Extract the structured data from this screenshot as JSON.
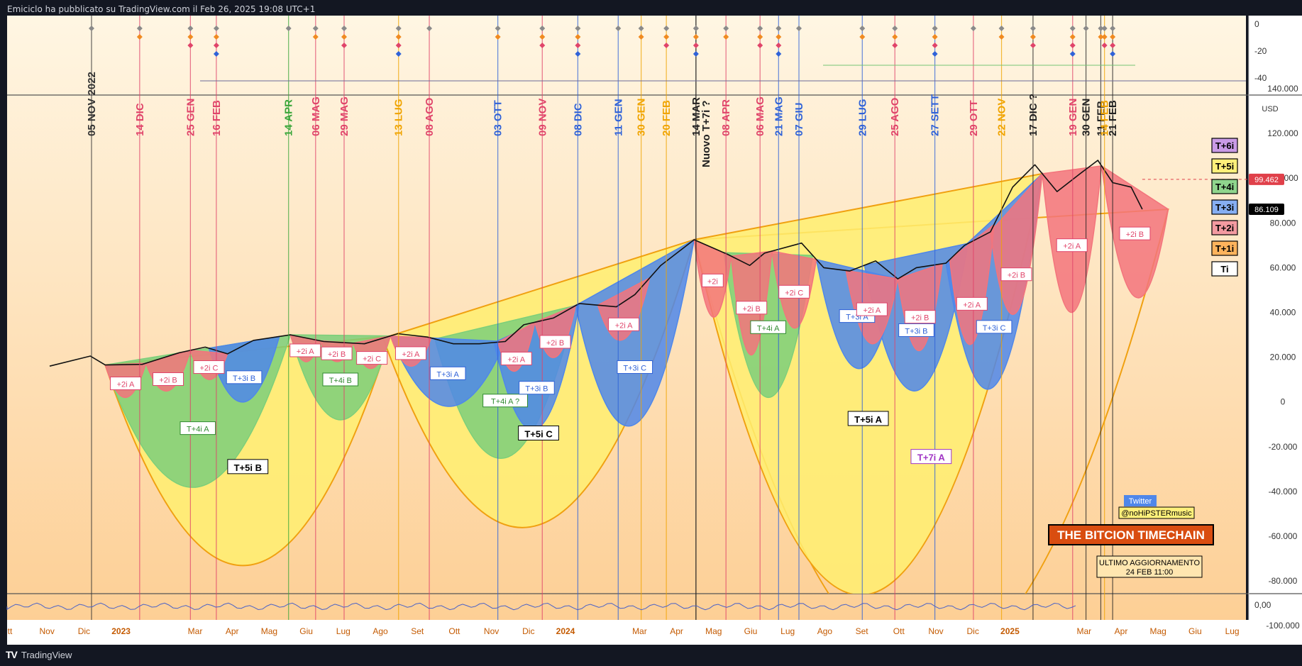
{
  "header": {
    "published_by": "Emiciclo ha pubblicato su TradingView.com il Feb 26, 2025 19:08 UTC+1"
  },
  "footer": {
    "brand": "TradingView"
  },
  "colors": {
    "background_top": "#fff6e3",
    "background_bottom": "#fdcf95",
    "cycle_T7i": "#ffb600",
    "cycle_T5i": "#ffee70",
    "cycle_T4i": "#7ccf7a",
    "cycle_T3i": "#4f87ea",
    "cycle_T2i": "#f3747c",
    "cycle_T1i": "#ffb35c",
    "price": "#111111"
  },
  "price_axis": {
    "currency": "USD",
    "ticks": [
      "140.000",
      "120.000",
      "100.000",
      "80.000",
      "60.000",
      "40.000",
      "20.000",
      "0",
      "-20.000",
      "-40.000",
      "-60.000",
      "-80.000",
      "-100.000"
    ],
    "last_price": "86.109",
    "ref_price": "99.462"
  },
  "top_panel_axis": {
    "ticks": [
      "0",
      "-20",
      "-40"
    ]
  },
  "bottom_panel_axis": {
    "ticks": [
      "0,00"
    ]
  },
  "time_axis": {
    "labels": [
      {
        "t": "tt",
        "m": 0
      },
      {
        "t": "Nov",
        "m": 1
      },
      {
        "t": "Dic",
        "m": 2
      },
      {
        "t": "2023",
        "m": 3,
        "bold": true
      },
      {
        "t": "Mar",
        "m": 5
      },
      {
        "t": "Apr",
        "m": 6
      },
      {
        "t": "Mag",
        "m": 7
      },
      {
        "t": "Giu",
        "m": 8
      },
      {
        "t": "Lug",
        "m": 9
      },
      {
        "t": "Ago",
        "m": 10
      },
      {
        "t": "Set",
        "m": 11
      },
      {
        "t": "Ott",
        "m": 12
      },
      {
        "t": "Nov",
        "m": 13
      },
      {
        "t": "Dic",
        "m": 14
      },
      {
        "t": "2024",
        "m": 15,
        "bold": true
      },
      {
        "t": "Mar",
        "m": 17
      },
      {
        "t": "Apr",
        "m": 18
      },
      {
        "t": "Mag",
        "m": 19
      },
      {
        "t": "Giu",
        "m": 20
      },
      {
        "t": "Lug",
        "m": 21
      },
      {
        "t": "Ago",
        "m": 22
      },
      {
        "t": "Set",
        "m": 23
      },
      {
        "t": "Ott",
        "m": 24
      },
      {
        "t": "Nov",
        "m": 25
      },
      {
        "t": "Dic",
        "m": 26
      },
      {
        "t": "2025",
        "m": 27,
        "bold": true
      },
      {
        "t": "Mar",
        "m": 29
      },
      {
        "t": "Apr",
        "m": 30
      },
      {
        "t": "Mag",
        "m": 31
      },
      {
        "t": "Giu",
        "m": 32
      },
      {
        "t": "Lug",
        "m": 33
      }
    ]
  },
  "chart_data": {
    "type": "line",
    "title": "THE BITCION TIMECHAIN",
    "ylabel": "USD",
    "ylim": [
      -120000,
      150000
    ],
    "x_months": "month index, 0 = Oct 2022 ... 33 = Jul 2025",
    "price_series": [
      {
        "x": 0,
        "y": 16000
      },
      {
        "x": 1.1,
        "y": 20500
      },
      {
        "x": 1.5,
        "y": 16500
      },
      {
        "x": 2.5,
        "y": 16800
      },
      {
        "x": 3.5,
        "y": 22000
      },
      {
        "x": 4.2,
        "y": 24500
      },
      {
        "x": 4.8,
        "y": 21500
      },
      {
        "x": 5.5,
        "y": 27500
      },
      {
        "x": 6.5,
        "y": 30000
      },
      {
        "x": 7.4,
        "y": 27000
      },
      {
        "x": 8.5,
        "y": 26000
      },
      {
        "x": 9.4,
        "y": 30500
      },
      {
        "x": 10.2,
        "y": 29000
      },
      {
        "x": 10.9,
        "y": 26000
      },
      {
        "x": 11.6,
        "y": 26000
      },
      {
        "x": 12.3,
        "y": 27000
      },
      {
        "x": 12.8,
        "y": 34500
      },
      {
        "x": 13.6,
        "y": 37500
      },
      {
        "x": 14.3,
        "y": 44000
      },
      {
        "x": 15.3,
        "y": 42500
      },
      {
        "x": 15.8,
        "y": 48000
      },
      {
        "x": 16.5,
        "y": 61000
      },
      {
        "x": 17.4,
        "y": 72500
      },
      {
        "x": 18.3,
        "y": 66000
      },
      {
        "x": 18.9,
        "y": 61000
      },
      {
        "x": 19.3,
        "y": 66500
      },
      {
        "x": 20.3,
        "y": 71000
      },
      {
        "x": 20.9,
        "y": 60000
      },
      {
        "x": 21.6,
        "y": 58500
      },
      {
        "x": 22.3,
        "y": 63000
      },
      {
        "x": 22.9,
        "y": 55000
      },
      {
        "x": 23.4,
        "y": 60000
      },
      {
        "x": 24.2,
        "y": 62000
      },
      {
        "x": 24.7,
        "y": 70000
      },
      {
        "x": 25.4,
        "y": 76000
      },
      {
        "x": 26.0,
        "y": 96000
      },
      {
        "x": 26.6,
        "y": 106000
      },
      {
        "x": 27.2,
        "y": 94000
      },
      {
        "x": 27.9,
        "y": 103000
      },
      {
        "x": 28.3,
        "y": 108000
      },
      {
        "x": 28.7,
        "y": 98000
      },
      {
        "x": 29.2,
        "y": 96000
      },
      {
        "x": 29.5,
        "y": 86109
      }
    ],
    "cycles": [
      {
        "label": "T+7i A",
        "start": 17.4,
        "end": 30.2,
        "low": -120000
      },
      {
        "label": "T+5i B",
        "start": 1.5,
        "end": 9.2,
        "low": -73000
      },
      {
        "label": "T+5i C",
        "start": 9.0,
        "end": 17.4,
        "low": -55000
      },
      {
        "label": "T+5i A",
        "start": 17.4,
        "end": 26.8,
        "low": -86000
      },
      {
        "label": "T+4i A",
        "start": 1.5,
        "end": 6.5,
        "low": -38000
      },
      {
        "label": "T+4i B",
        "start": 6.5,
        "end": 9.2,
        "low": -8000
      },
      {
        "label": "T+4i A ?",
        "start": 10.4,
        "end": 14.2,
        "low": -25000
      },
      {
        "label": "T+4i A",
        "start": 18.2,
        "end": 20.6,
        "low": 2000
      },
      {
        "label": "T+3i B",
        "start": 4.3,
        "end": 6.2,
        "low": 0
      },
      {
        "label": "T+3i A",
        "start": 9.2,
        "end": 12.3,
        "low": -2000
      },
      {
        "label": "T+3i B",
        "start": 12.0,
        "end": 14.3,
        "low": -12000
      },
      {
        "label": "T+3i C",
        "start": 14.2,
        "end": 17.4,
        "low": -10000
      },
      {
        "label": "T+3i A",
        "start": 20.7,
        "end": 22.9,
        "low": 15000
      },
      {
        "label": "T+3i B",
        "start": 22.0,
        "end": 24.8,
        "low": 5000
      },
      {
        "label": "T+3i C",
        "start": 24.2,
        "end": 26.8,
        "low": 7000
      },
      {
        "label": "+2i A",
        "start": 1.5,
        "end": 2.6,
        "low": 2000
      },
      {
        "label": "+2i B",
        "start": 2.6,
        "end": 3.8,
        "low": 5000
      },
      {
        "label": "+2i C",
        "start": 3.8,
        "end": 4.8,
        "low": 10000
      },
      {
        "label": "+2i A",
        "start": 6.5,
        "end": 7.3,
        "low": 18000
      },
      {
        "label": "+2i B",
        "start": 7.3,
        "end": 8.2,
        "low": 18000
      },
      {
        "label": "+2i C",
        "start": 8.2,
        "end": 9.2,
        "low": 15000
      },
      {
        "label": "+2i A",
        "start": 9.2,
        "end": 10.3,
        "low": 16000
      },
      {
        "label": "+2i A",
        "start": 12.1,
        "end": 13.1,
        "low": 14000
      },
      {
        "label": "+2i B",
        "start": 13.1,
        "end": 14.2,
        "low": 20000
      },
      {
        "label": "+2i A",
        "start": 14.8,
        "end": 16.2,
        "low": 28000
      },
      {
        "label": "+2i",
        "start": 17.4,
        "end": 18.4,
        "low": 38000
      },
      {
        "label": "+2i B",
        "start": 18.4,
        "end": 19.5,
        "low": 21000
      },
      {
        "label": "+2i C",
        "start": 19.5,
        "end": 20.7,
        "low": 33000
      },
      {
        "label": "+2i A",
        "start": 21.5,
        "end": 22.9,
        "low": 26000
      },
      {
        "label": "+2i B",
        "start": 22.9,
        "end": 24.1,
        "low": 23000
      },
      {
        "label": "+2i A",
        "start": 24.3,
        "end": 25.5,
        "low": 26000
      },
      {
        "label": "+2i B",
        "start": 25.4,
        "end": 26.8,
        "low": 40000
      },
      {
        "label": "+2i A",
        "start": 26.8,
        "end": 28.4,
        "low": 40000
      },
      {
        "label": "+2i B",
        "start": 28.4,
        "end": 30.2,
        "low": 47000
      }
    ],
    "event_lines": [
      {
        "label": "05 NOV 2022",
        "x": 1.13,
        "color": "#333333"
      },
      {
        "label": "14 DIC",
        "x": 2.43,
        "color": "#e0446a"
      },
      {
        "label": "25 GEN",
        "x": 3.8,
        "color": "#e0446a"
      },
      {
        "label": "16 FEB",
        "x": 4.5,
        "color": "#e0446a"
      },
      {
        "label": "14 APR",
        "x": 6.45,
        "color": "#3aa63a"
      },
      {
        "label": "06 MAG",
        "x": 7.18,
        "color": "#e0446a"
      },
      {
        "label": "29 MAG",
        "x": 7.95,
        "color": "#e0446a"
      },
      {
        "label": "13 LUG",
        "x": 9.42,
        "color": "#f0a400"
      },
      {
        "label": "08 AGO",
        "x": 10.25,
        "color": "#e0446a"
      },
      {
        "label": "03 OTT",
        "x": 12.1,
        "color": "#2f62d8"
      },
      {
        "label": "09 NOV",
        "x": 13.3,
        "color": "#e0446a"
      },
      {
        "label": "08 DIC",
        "x": 14.26,
        "color": "#2f62d8"
      },
      {
        "label": "11 GEN",
        "x": 15.35,
        "color": "#2f62d8"
      },
      {
        "label": "30 GEN",
        "x": 15.97,
        "color": "#f0a400"
      },
      {
        "label": "20 FEB",
        "x": 16.65,
        "color": "#f0a400"
      },
      {
        "label": "14 MAR",
        "x": 17.45,
        "color": "#222222"
      },
      {
        "label": "Nuovo T+7i ?",
        "x": 17.45,
        "color": "#222222",
        "offset": true
      },
      {
        "label": "08 APR",
        "x": 18.26,
        "color": "#e0446a"
      },
      {
        "label": "06 MAG",
        "x": 19.18,
        "color": "#e0446a"
      },
      {
        "label": "21 MAG",
        "x": 19.68,
        "color": "#2f62d8"
      },
      {
        "label": "07 GIU",
        "x": 20.23,
        "color": "#2f62d8"
      },
      {
        "label": "29 LUG",
        "x": 21.94,
        "color": "#2f62d8"
      },
      {
        "label": "25 AGO",
        "x": 22.82,
        "color": "#e0446a"
      },
      {
        "label": "27 SETT",
        "x": 23.9,
        "color": "#2f62d8"
      },
      {
        "label": "29 OTT",
        "x": 24.94,
        "color": "#e0446a"
      },
      {
        "label": "22 NOV",
        "x": 25.7,
        "color": "#f0a400"
      },
      {
        "label": "17 DIC ?",
        "x": 26.55,
        "color": "#222222"
      },
      {
        "label": "19 GEN",
        "x": 27.62,
        "color": "#e0446a"
      },
      {
        "label": "30 GEN",
        "x": 27.98,
        "color": "#222222"
      },
      {
        "label": "11 FEB",
        "x": 28.38,
        "color": "#222222"
      },
      {
        "label": "14 FEB",
        "x": 28.48,
        "color": "#f0a400"
      },
      {
        "label": "21 FEB",
        "x": 28.7,
        "color": "#222222"
      }
    ]
  },
  "legend": {
    "items": [
      {
        "label": "T+6i",
        "color": "#c99be6"
      },
      {
        "label": "T+5i",
        "color": "#fff07a"
      },
      {
        "label": "T+4i",
        "color": "#8fd58d"
      },
      {
        "label": "T+3i",
        "color": "#86aef2"
      },
      {
        "label": "T+2i",
        "color": "#f39aa0"
      },
      {
        "label": "T+1i",
        "color": "#ffb35c"
      },
      {
        "label": "Ti",
        "color": "#ffffff"
      }
    ]
  },
  "annotations": {
    "twitter": "Twitter",
    "handle": "@noHiPSTERmusic",
    "banner": "THE BITCION TIMECHAIN",
    "updated_line1": "ULTIMO AGGIORNAMENTO",
    "updated_line2": "24 FEB 11:00"
  }
}
